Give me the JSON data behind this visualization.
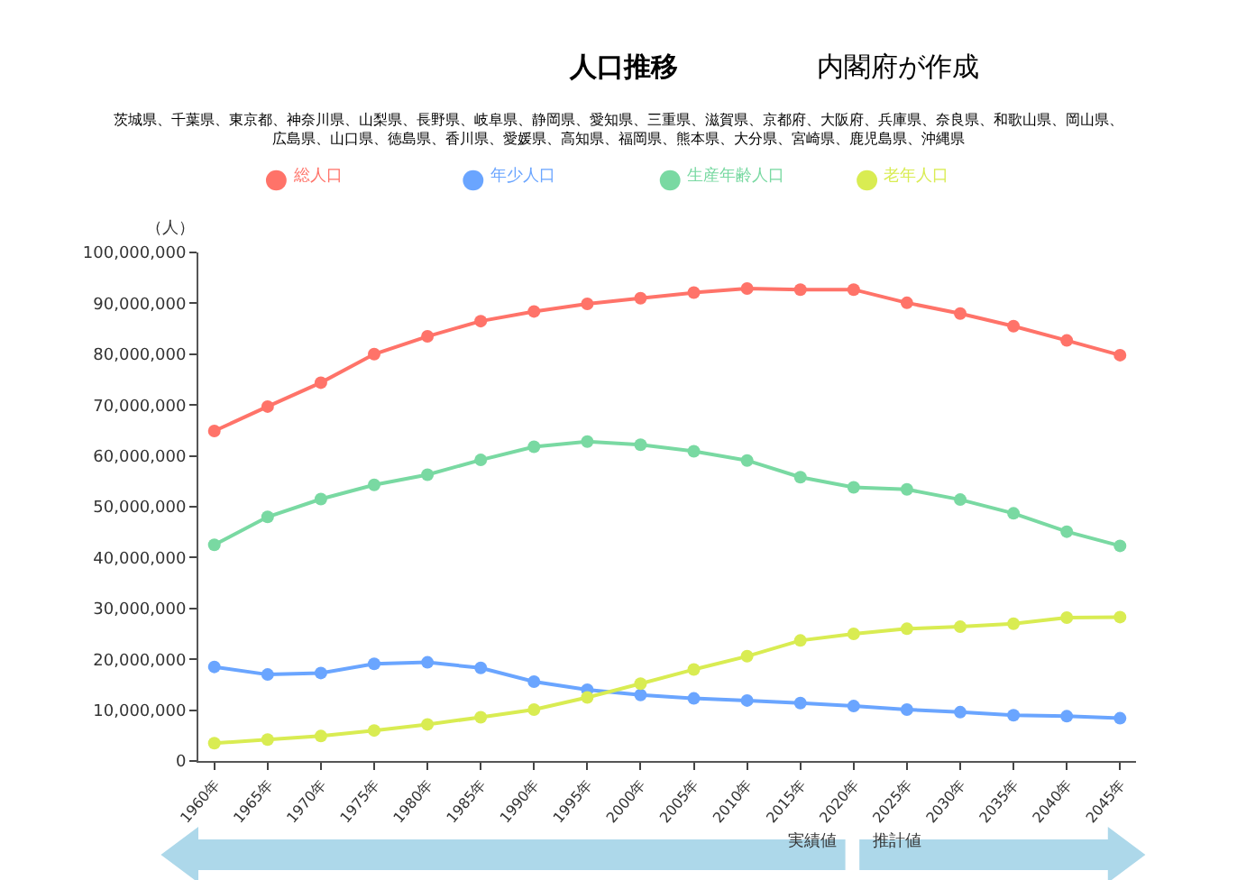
{
  "chart_data": {
    "type": "line",
    "title": "人口推移",
    "subtitle": "茨城県、千葉県、東京都、神奈川県、山梨県、長野県、岐阜県、静岡県、愛知県、三重県、滋賀県、京都府、大阪府、兵庫県、奈良県、和歌山県、岡山県、広島県、山口県、徳島県、香川県、愛媛県、高知県、福岡県、熊本県、大分県、宮崎県、鹿児島県、沖縄県",
    "annotations": [
      "内閣府が作成",
      "実績値",
      "推計値"
    ],
    "ylabel": "（人）",
    "categories": [
      "1960年",
      "1965年",
      "1970年",
      "1975年",
      "1980年",
      "1985年",
      "1990年",
      "1995年",
      "2000年",
      "2005年",
      "2010年",
      "2015年",
      "2020年",
      "2025年",
      "2030年",
      "2035年",
      "2040年",
      "2045年"
    ],
    "series": [
      {
        "name": "総人口",
        "color": "#ff7369",
        "values": [
          64900000,
          69700000,
          74400000,
          80000000,
          83500000,
          86500000,
          88400000,
          89900000,
          91000000,
          92100000,
          92900000,
          92700000,
          92700000,
          90100000,
          88000000,
          85500000,
          82700000,
          79800000
        ]
      },
      {
        "name": "年少人口",
        "color": "#6aa5ff",
        "values": [
          18500000,
          17000000,
          17300000,
          19100000,
          19400000,
          18300000,
          15600000,
          14000000,
          13000000,
          12300000,
          11900000,
          11400000,
          10800000,
          10100000,
          9600000,
          9000000,
          8800000,
          8400000
        ]
      },
      {
        "name": "生産年齢人口",
        "color": "#79d9a2",
        "values": [
          42500000,
          48000000,
          51500000,
          54300000,
          56300000,
          59200000,
          61800000,
          62800000,
          62200000,
          60900000,
          59100000,
          55800000,
          53800000,
          53400000,
          51400000,
          48700000,
          45100000,
          42300000
        ]
      },
      {
        "name": "老年人口",
        "color": "#d9ec52",
        "values": [
          3500000,
          4200000,
          4900000,
          6000000,
          7200000,
          8600000,
          10100000,
          12500000,
          15200000,
          18000000,
          20600000,
          23700000,
          25000000,
          26000000,
          26400000,
          27000000,
          28200000,
          28300000
        ]
      }
    ],
    "ylim": [
      0,
      100000000
    ],
    "yticks": [
      0,
      {
        "value": 10000000,
        "label": "10,000,000"
      },
      {
        "value": 20000000,
        "label": "20,000,000"
      },
      {
        "value": 30000000,
        "label": "30,000,000"
      },
      {
        "value": 40000000,
        "label": "40,000,000"
      },
      {
        "value": 50000000,
        "label": "50,000,000"
      },
      {
        "value": 60000000,
        "label": "60,000,000"
      },
      {
        "value": 70000000,
        "label": "70,000,000"
      },
      {
        "value": 80000000,
        "label": "80,000,000"
      },
      {
        "value": 90000000,
        "label": "90,000,000"
      },
      {
        "value": 100000000,
        "label": "100,000,000"
      }
    ],
    "grid": false,
    "legend": "top",
    "marker": "circle",
    "line_style": "solid"
  }
}
